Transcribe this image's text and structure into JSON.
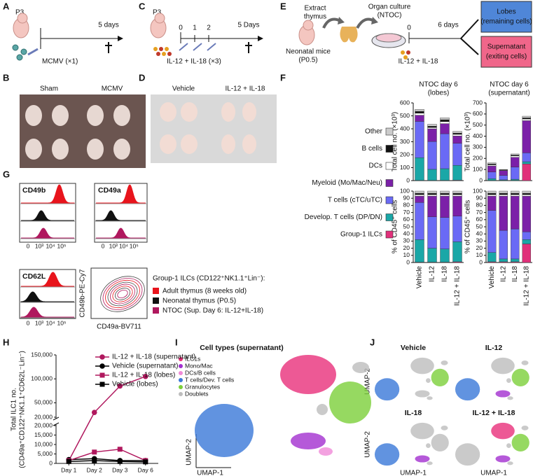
{
  "figure": {
    "A": {
      "label": "A",
      "age": "P3",
      "end": "5 days",
      "treatment": "MCMV (×1)"
    },
    "B": {
      "label": "B",
      "groups": [
        "Sham",
        "MCMV"
      ]
    },
    "C": {
      "label": "C",
      "age": "P3",
      "days": [
        "0",
        "1",
        "2",
        "5 Days"
      ],
      "treatment": "IL-12 + IL-18 (×3)"
    },
    "D": {
      "label": "D",
      "groups": [
        "Vehicle",
        "IL-12 + IL-18"
      ]
    },
    "E": {
      "label": "E",
      "step1": [
        "Extract",
        "thymus"
      ],
      "step2": [
        "Organ culture",
        "(NTOC)"
      ],
      "mice": [
        "Neonatal mice",
        "(P0.5)"
      ],
      "start": "0",
      "duration": "6 days",
      "treatment": "IL-12 + IL-18",
      "outputs": [
        {
          "lines": [
            "Lobes",
            "(remaining cells)"
          ],
          "color": "#4f86d8"
        },
        {
          "lines": [
            "Supernatant",
            "(exiting cells)"
          ],
          "color": "#f0668a"
        }
      ]
    },
    "F": {
      "label": "F"
    },
    "G": {
      "label": "G",
      "markers": [
        "CD49b",
        "CD49a",
        "CD62L"
      ],
      "ticks": [
        "0",
        "10³",
        "10⁴",
        "10⁵"
      ],
      "ylabel": "CD49b-PE-Cy7",
      "xlabel": "CD49a-BV711",
      "legend_title": "Group-1 ILCs (CD122⁺NK1.1⁺Lin⁻):",
      "legend": [
        {
          "name": "Adult thymus (8 weeks old)",
          "color": "#e8141c"
        },
        {
          "name": "Neonatal thymus (P0.5)",
          "color": "#111111"
        },
        {
          "name": "NTOC (Sup. Day 6: IL-12+IL-18)",
          "color": "#b0185e"
        }
      ]
    },
    "H": {
      "label": "H"
    },
    "I": {
      "label": "I",
      "title": "Cell types (supernatant)",
      "xlabel": "UMAP-1",
      "ylabel": "UMAP-2",
      "legend": [
        {
          "name": "ILC1s",
          "color": "#e8307a"
        },
        {
          "name": "Mono/Mac",
          "color": "#a22fd0"
        },
        {
          "name": "DCs/B cells",
          "color": "#f08ad8"
        },
        {
          "name": "T cells/Dev. T cells",
          "color": "#3a78d8"
        },
        {
          "name": "Granulocytes",
          "color": "#7ccf3a"
        },
        {
          "name": "Doublets",
          "color": "#bdbdbd"
        }
      ]
    },
    "J": {
      "label": "J",
      "titles": [
        "Vehicle",
        "IL-12",
        "IL-18",
        "IL-12 + IL-18"
      ],
      "xlabel": "UMAP-1",
      "ylabel": "UMAP-2"
    }
  },
  "chart_data": [
    {
      "type": "stacked_bar",
      "title": [
        "NTOC day 6",
        "(lobes)"
      ],
      "ylabel": "Total cell no. (×10³)",
      "ylim": [
        0,
        600
      ],
      "yticks": [
        0,
        100,
        200,
        300,
        400,
        500,
        600
      ],
      "series": [
        {
          "name": "Group-1 ILCs",
          "color": "#e0307a",
          "values": [
            2,
            2,
            2,
            3
          ]
        },
        {
          "name": "Develop. T cells (DP/DN)",
          "color": "#1aa7a7",
          "values": [
            175,
            85,
            90,
            115
          ]
        },
        {
          "name": "T cells (cTC/uTC)",
          "color": "#6a6af5",
          "values": [
            280,
            215,
            270,
            170
          ]
        },
        {
          "name": "Myeloid (Mo/Mac/Neu)",
          "color": "#7b20a8",
          "values": [
            48,
            98,
            78,
            57
          ]
        },
        {
          "name": "DCs",
          "color": "#ffffff",
          "values": [
            15,
            10,
            15,
            12
          ]
        },
        {
          "name": "B cells",
          "color": "#111111",
          "values": [
            15,
            10,
            15,
            10
          ]
        },
        {
          "name": "Other",
          "color": "#cccccc",
          "values": [
            15,
            15,
            15,
            13
          ]
        }
      ]
    },
    {
      "type": "stacked_bar",
      "title": [
        "NTOC day 6",
        "(supernatant)"
      ],
      "ylabel": "Total cell no. (×10³)",
      "ylim": [
        0,
        700
      ],
      "yticks": [
        0,
        100,
        200,
        300,
        400,
        500,
        600,
        700
      ],
      "series": [
        {
          "color": "#e0307a",
          "values": [
            2,
            2,
            2,
            150
          ]
        },
        {
          "color": "#1aa7a7",
          "values": [
            15,
            5,
            10,
            20
          ]
        },
        {
          "color": "#6a6af5",
          "values": [
            60,
            40,
            110,
            80
          ]
        },
        {
          "color": "#7b20a8",
          "values": [
            55,
            43,
            88,
            290
          ]
        },
        {
          "color": "#ffffff",
          "values": [
            10,
            4,
            12,
            15
          ]
        },
        {
          "color": "#111111",
          "values": [
            8,
            3,
            8,
            10
          ]
        },
        {
          "color": "#cccccc",
          "values": [
            10,
            3,
            10,
            15
          ]
        }
      ]
    },
    {
      "type": "stacked_bar",
      "ylabel": "% of CD45⁺ cells",
      "ylim": [
        0,
        100
      ],
      "yticks": [
        0,
        10,
        20,
        30,
        40,
        50,
        60,
        70,
        80,
        90,
        100
      ],
      "categories": [
        "Vehicle",
        "IL-12",
        "IL-18",
        "IL-12 + IL-18"
      ],
      "series": [
        {
          "color": "#e0307a",
          "values": [
            0.5,
            0.5,
            0.5,
            1
          ]
        },
        {
          "color": "#1aa7a7",
          "values": [
            31.5,
            19.5,
            18.5,
            28
          ]
        },
        {
          "color": "#6a6af5",
          "values": [
            52,
            44,
            44,
            36
          ]
        },
        {
          "color": "#7b20a8",
          "values": [
            9,
            29,
            30,
            28
          ]
        },
        {
          "color": "#ffffff",
          "values": [
            2,
            2,
            2,
            2
          ]
        },
        {
          "color": "#111111",
          "values": [
            2,
            2,
            2,
            2
          ]
        },
        {
          "color": "#cccccc",
          "values": [
            3,
            3,
            3,
            3
          ]
        }
      ]
    },
    {
      "type": "stacked_bar",
      "ylabel": "% of CD45⁺ cells",
      "ylim": [
        0,
        100
      ],
      "yticks": [
        0,
        10,
        20,
        30,
        40,
        50,
        60,
        70,
        80,
        90,
        100
      ],
      "categories": [
        "Vehicle",
        "IL-12",
        "IL-18",
        "IL-12 + IL-18"
      ],
      "series": [
        {
          "color": "#e0307a",
          "values": [
            1,
            1,
            1,
            26
          ]
        },
        {
          "color": "#1aa7a7",
          "values": [
            13,
            4,
            4,
            6
          ]
        },
        {
          "color": "#6a6af5",
          "values": [
            59,
            40,
            42,
            11
          ]
        },
        {
          "color": "#7b20a8",
          "values": [
            20,
            48,
            46,
            50
          ]
        },
        {
          "color": "#ffffff",
          "values": [
            2,
            2,
            2,
            2
          ]
        },
        {
          "color": "#111111",
          "values": [
            2,
            2,
            2,
            2
          ]
        },
        {
          "color": "#cccccc",
          "values": [
            3,
            3,
            3,
            3
          ]
        }
      ]
    },
    {
      "type": "broken_line",
      "ylabel": [
        "Total ILC1 no.",
        "(CD49a⁺CD122⁺NK1.1⁺CD62L⁻Lin⁻)"
      ],
      "categories": [
        "Day 1",
        "Day 2",
        "Day 3",
        "Day 6"
      ],
      "ylim_lower": [
        0,
        20000
      ],
      "yticks_lower": [
        0,
        {
          "value": 5000,
          "label": "5,000"
        },
        {
          "value": 10000,
          "label": "10,000"
        },
        {
          "value": 15000,
          "label": "15,000"
        },
        {
          "value": 20000,
          "label": "20,000"
        }
      ],
      "ylim_upper": [
        20000,
        150000
      ],
      "yticks_upper": [
        {
          "value": 20000,
          "label": "20,000"
        },
        {
          "value": 50000,
          "label": "50,000"
        },
        {
          "value": 100000,
          "label": "100,000"
        },
        {
          "value": 150000,
          "label": "150,000"
        }
      ],
      "series": [
        {
          "name": "IL-12 + IL-18 (supernatant)",
          "color": "#b0185e",
          "marker": "circle",
          "values": [
            1500,
            30000,
            85000,
            105000
          ]
        },
        {
          "name": "Vehicle (supernatant)",
          "color": "#000000",
          "marker": "circle",
          "values": [
            2000,
            2500,
            1500,
            1500
          ]
        },
        {
          "name": "IL-12 + IL-18 (lobes)",
          "color": "#b0185e",
          "marker": "square",
          "values": [
            1500,
            6000,
            7500,
            1500
          ]
        },
        {
          "name": "Vehicle (lobes)",
          "color": "#000000",
          "marker": "square",
          "values": [
            1000,
            1500,
            1000,
            800
          ]
        }
      ]
    }
  ]
}
